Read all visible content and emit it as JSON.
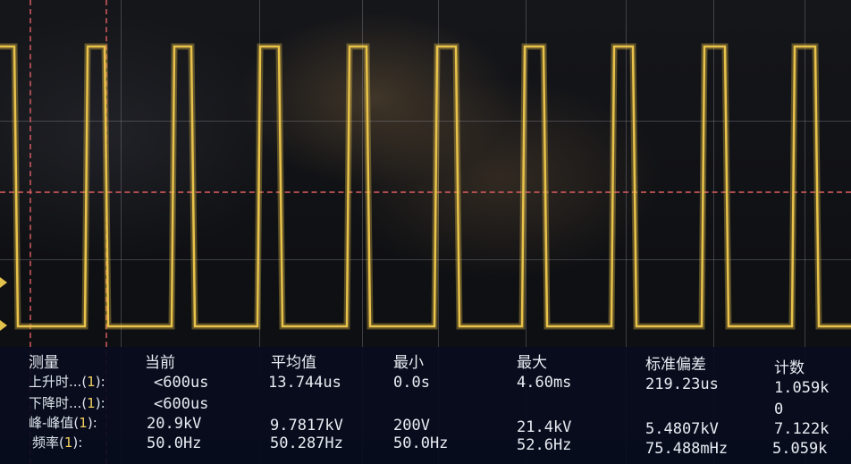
{
  "colors": {
    "trace": "#e8c24a",
    "grid": "#8c8c96",
    "reference": "#c8575a",
    "panel": "#081e1e",
    "text": "#e8ecf2"
  },
  "waveform": {
    "channel": "1",
    "shape": "square",
    "cycles_visible": 9
  },
  "measurements": {
    "headers": {
      "label": "测量",
      "current": "当前",
      "mean": "平均值",
      "min": "最小",
      "max": "最大",
      "std": "标准偏差",
      "count": "计数"
    },
    "rows": [
      {
        "label": "上升时...",
        "channel": "1",
        "suffix": ":",
        "current": "<600us",
        "mean": "13.744us",
        "min": "0.0s",
        "max": "4.60ms",
        "std": "219.23us",
        "count": "1.059k"
      },
      {
        "label": "下降时...",
        "channel": "1",
        "suffix": ":",
        "current": "<600us",
        "mean": "",
        "min": "",
        "max": "",
        "std": "",
        "count": "0"
      },
      {
        "label": "峰-峰值",
        "channel": "1",
        "suffix": ":",
        "current": "20.9kV",
        "mean": "9.7817kV",
        "min": "200V",
        "max": "21.4kV",
        "std": "5.4807kV",
        "count": "7.122k"
      },
      {
        "label": "频率",
        "channel": "1",
        "suffix": ":",
        "current": "50.0Hz",
        "mean": "50.287Hz",
        "min": "50.0Hz",
        "max": "52.6Hz",
        "std": "75.488mHz",
        "count": "5.059k"
      }
    ]
  }
}
